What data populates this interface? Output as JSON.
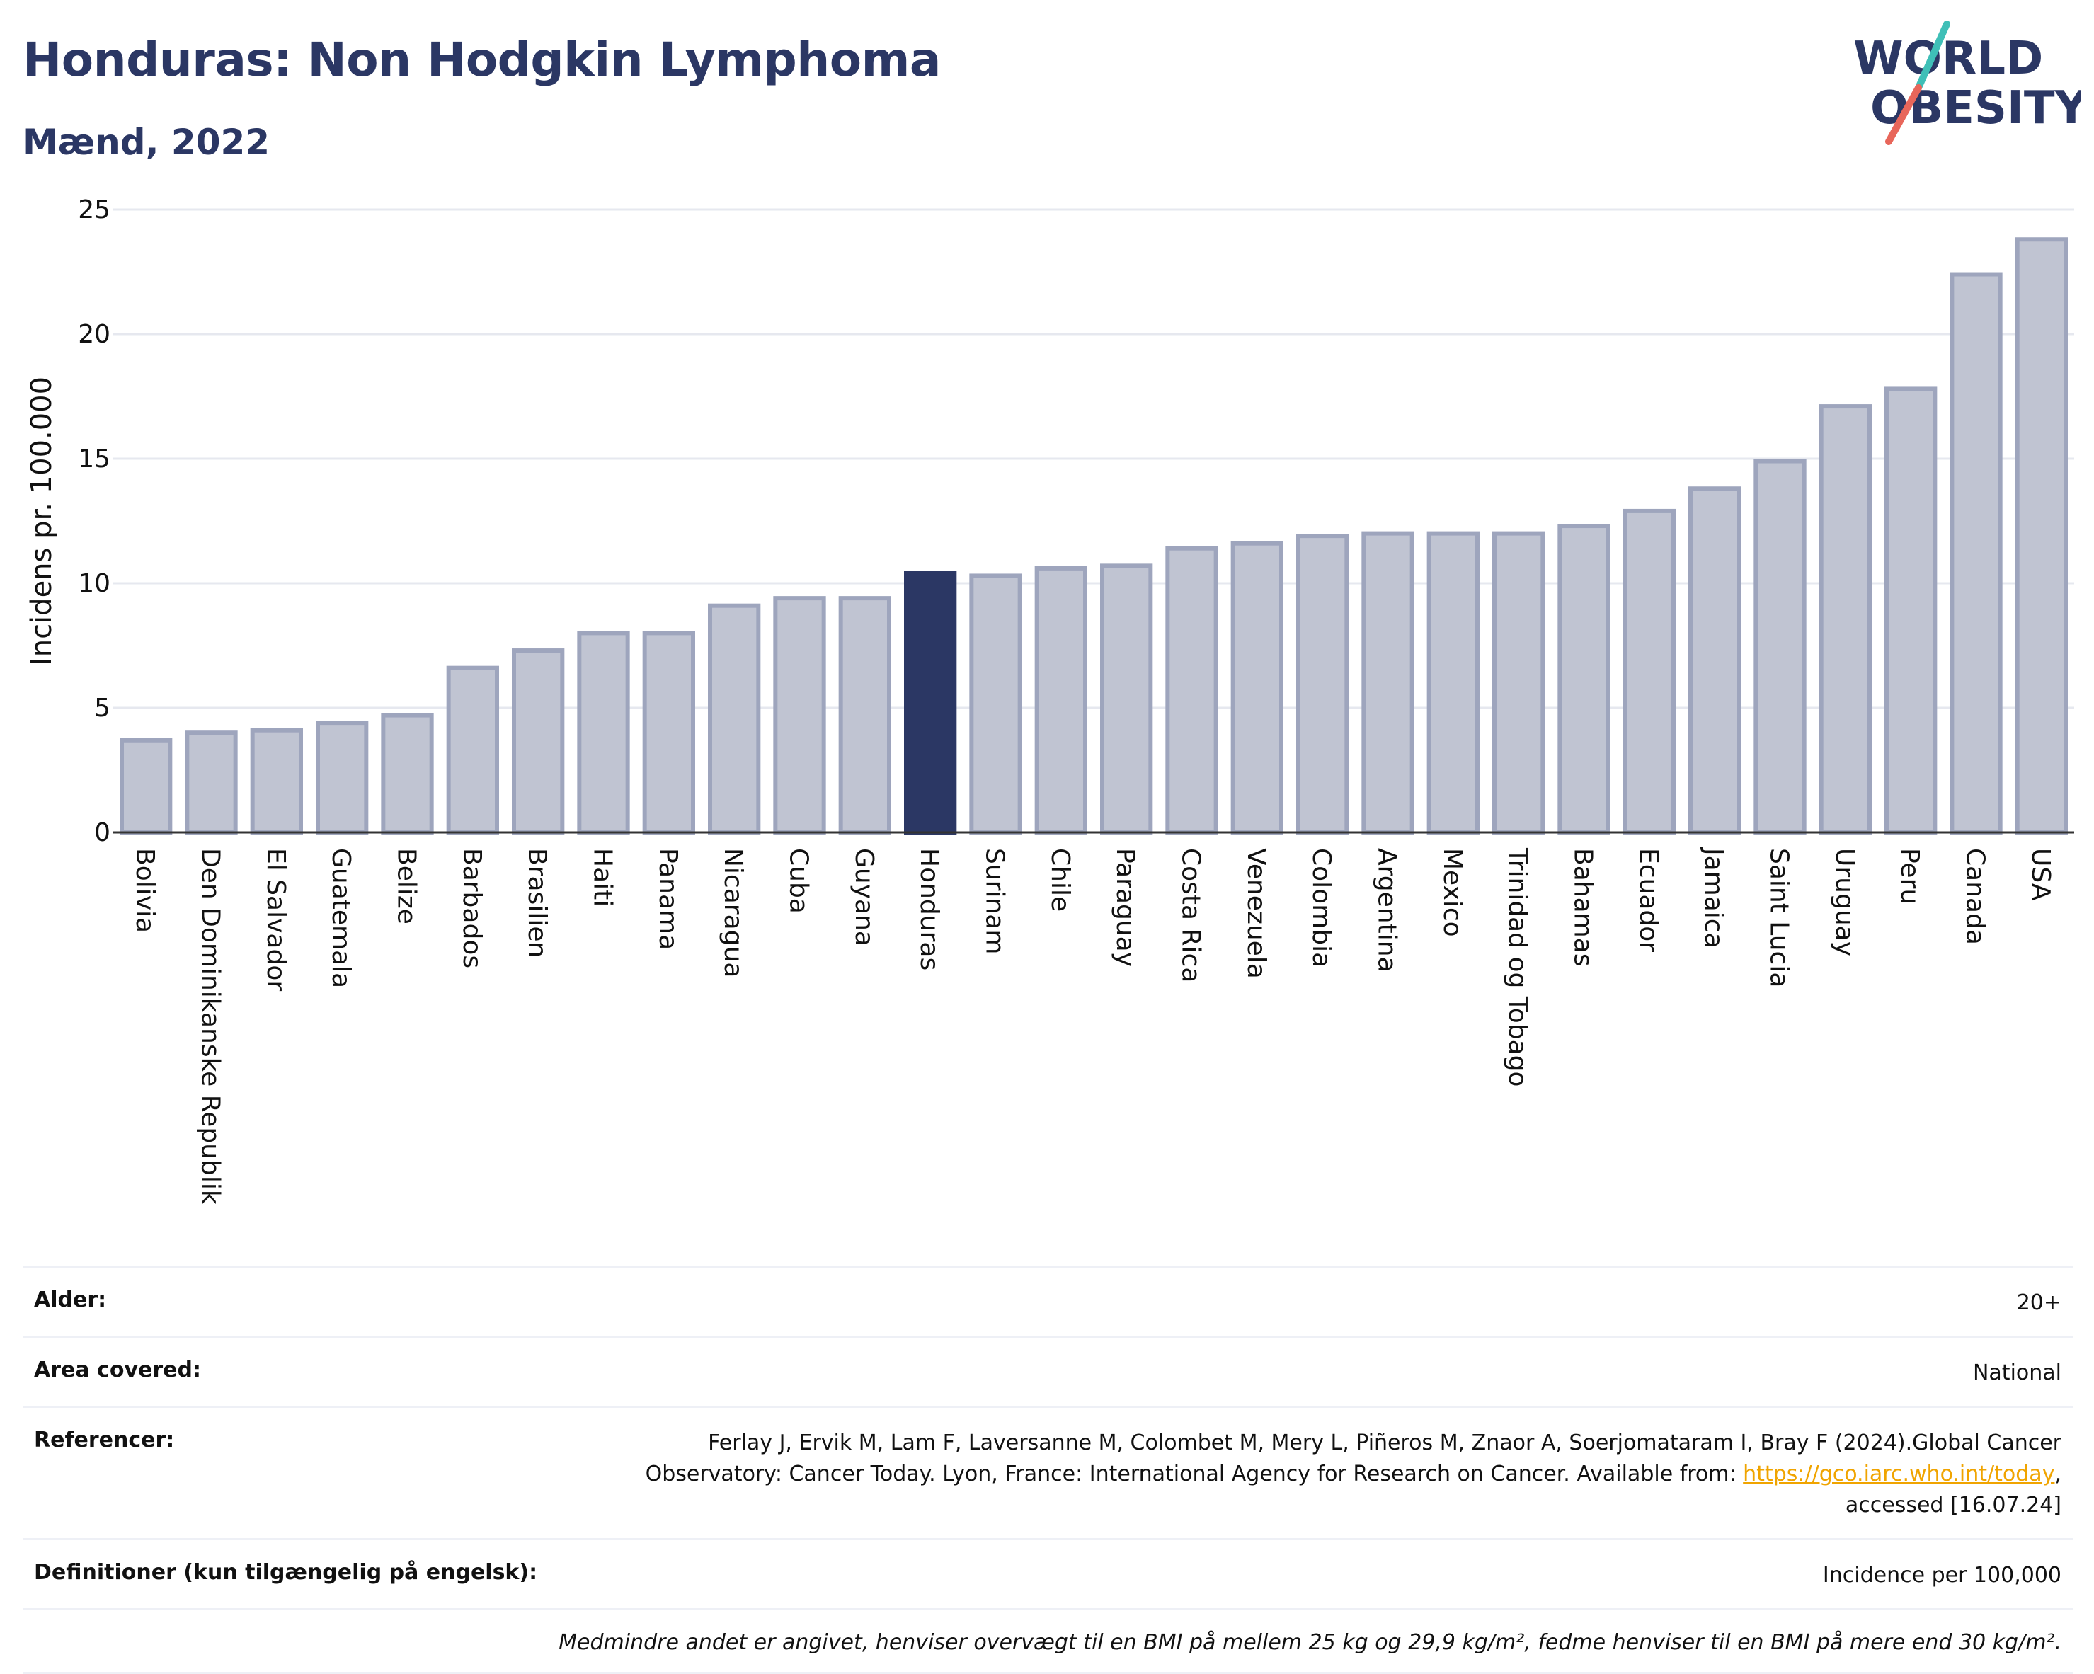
{
  "header": {
    "title": "Honduras: Non Hodgkin Lymphoma",
    "subtitle": "Mænd, 2022"
  },
  "logo": {
    "line1": "WORLD",
    "line2": "OBESITY"
  },
  "colors": {
    "bar_fill": "#c0c4d2",
    "bar_stroke": "#9ea5bd",
    "highlight": "#2b3764",
    "title": "#2b3764",
    "grid": "#e6e8ef",
    "link": "#f0a400",
    "logo_teal": "#3fbfb7",
    "logo_coral": "#e8665a"
  },
  "chart_data": {
    "type": "bar",
    "title": "Honduras: Non Hodgkin Lymphoma",
    "subtitle": "Mænd, 2022",
    "ylabel": "Incidens pr. 100.000",
    "xlabel": "",
    "ylim": [
      0,
      25
    ],
    "yticks": [
      0,
      5,
      10,
      15,
      20,
      25
    ],
    "grid": true,
    "highlight": "Honduras",
    "categories": [
      "Bolivia",
      "Den Dominikanske Republik",
      "El Salvador",
      "Guatemala",
      "Belize",
      "Barbados",
      "Brasilien",
      "Haiti",
      "Panama",
      "Nicaragua",
      "Cuba",
      "Guyana",
      "Honduras",
      "Surinam",
      "Chile",
      "Paraguay",
      "Costa Rica",
      "Venezuela",
      "Colombia",
      "Argentina",
      "Mexico",
      "Trinidad og Tobago",
      "Bahamas",
      "Ecuador",
      "Jamaica",
      "Saint Lucia",
      "Uruguay",
      "Peru",
      "Canada",
      "USA"
    ],
    "values": [
      3.7,
      4.0,
      4.1,
      4.4,
      4.7,
      6.6,
      7.3,
      8.0,
      8.0,
      9.1,
      9.4,
      9.4,
      10.4,
      10.3,
      10.6,
      10.7,
      11.4,
      11.6,
      11.9,
      12.0,
      12.0,
      12.0,
      12.3,
      12.9,
      13.8,
      14.9,
      17.1,
      17.8,
      22.4,
      23.8
    ]
  },
  "info": {
    "age_label": "Alder:",
    "age_value": "20+",
    "area_label": "Area covered:",
    "area_value": "National",
    "refs_label": "Referencer:",
    "refs_text": "Ferlay J, Ervik M, Lam F, Laversanne M, Colombet M, Mery L, Piñeros M, Znaor A, Soerjomataram I, Bray F (2024).Global Cancer Observatory: Cancer Today. Lyon, France: International Agency for Research on Cancer. Available from: ",
    "refs_link": "https://gco.iarc.who.int/today",
    "refs_suffix": ", accessed [16.07.24]",
    "defs_label": "Definitioner (kun tilgængelig på engelsk):",
    "defs_value": "Incidence per 100,000",
    "note": "Medmindre andet er angivet, henviser overvægt til en BMI på mellem 25 kg og 29,9 kg/m², fedme henviser til en BMI på mere end 30 kg/m²."
  }
}
